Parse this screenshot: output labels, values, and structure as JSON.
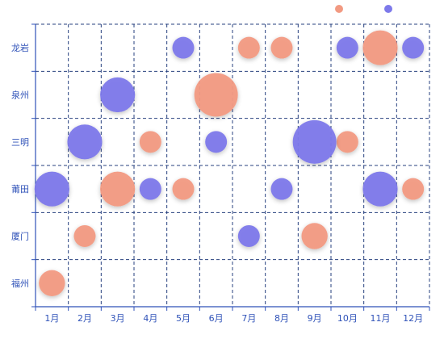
{
  "chart_data": {
    "type": "scatter",
    "title": "",
    "xlabel": "",
    "ylabel": "",
    "x_categories": [
      "1月",
      "2月",
      "3月",
      "4月",
      "5月",
      "6月",
      "7月",
      "8月",
      "9月",
      "10月",
      "11月",
      "12月"
    ],
    "y_categories": [
      "福州",
      "厦门",
      "莆田",
      "三明",
      "泉州",
      "龙岩"
    ],
    "grid": true,
    "legend_position": "top-right",
    "series": [
      {
        "color": "#f29a82",
        "points": [
          {
            "x": "1月",
            "y": "福州",
            "size": 6
          },
          {
            "x": "2月",
            "y": "厦门",
            "size": 5
          },
          {
            "x": "9月",
            "y": "厦门",
            "size": 6
          },
          {
            "x": "3月",
            "y": "莆田",
            "size": 8
          },
          {
            "x": "5月",
            "y": "莆田",
            "size": 5
          },
          {
            "x": "12月",
            "y": "莆田",
            "size": 5
          },
          {
            "x": "4月",
            "y": "三明",
            "size": 5
          },
          {
            "x": "10月",
            "y": "三明",
            "size": 5
          },
          {
            "x": "6月",
            "y": "泉州",
            "size": 10
          },
          {
            "x": "7月",
            "y": "龙岩",
            "size": 5
          },
          {
            "x": "8月",
            "y": "龙岩",
            "size": 5
          },
          {
            "x": "11月",
            "y": "龙岩",
            "size": 8
          }
        ]
      },
      {
        "color": "#7d79ea",
        "points": [
          {
            "x": "7月",
            "y": "厦门",
            "size": 5
          },
          {
            "x": "1月",
            "y": "莆田",
            "size": 8
          },
          {
            "x": "4月",
            "y": "莆田",
            "size": 5
          },
          {
            "x": "8月",
            "y": "莆田",
            "size": 5
          },
          {
            "x": "11月",
            "y": "莆田",
            "size": 8
          },
          {
            "x": "2月",
            "y": "三明",
            "size": 8
          },
          {
            "x": "6月",
            "y": "三明",
            "size": 5
          },
          {
            "x": "9月",
            "y": "三明",
            "size": 10
          },
          {
            "x": "3月",
            "y": "泉州",
            "size": 8
          },
          {
            "x": "5月",
            "y": "龙岩",
            "size": 5
          },
          {
            "x": "10月",
            "y": "龙岩",
            "size": 5
          },
          {
            "x": "12月",
            "y": "龙岩",
            "size": 5
          }
        ]
      }
    ]
  }
}
